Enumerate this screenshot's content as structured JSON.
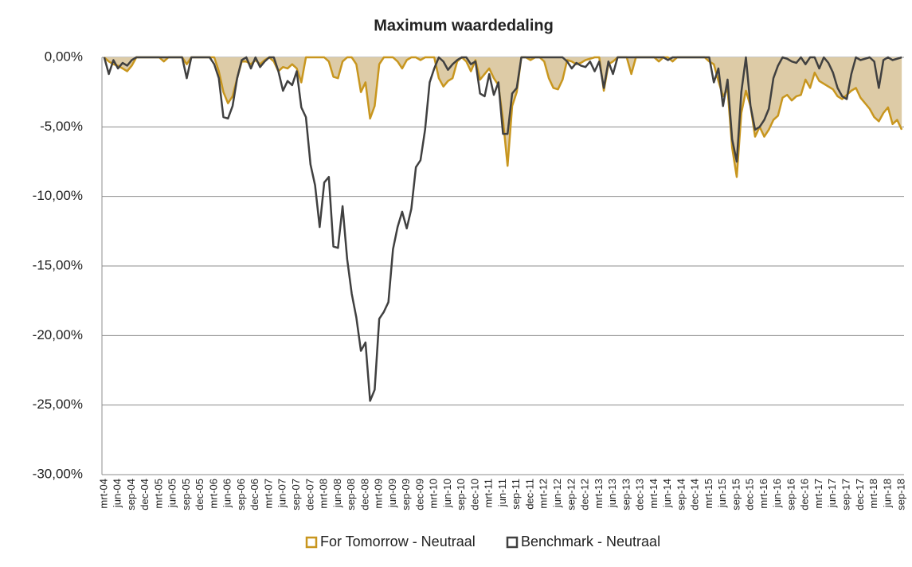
{
  "chart_data": {
    "type": "area-line",
    "title": "Maximum waardedaling",
    "categories": [
      "mrt-04",
      null,
      null,
      "jun-04",
      null,
      null,
      "sep-04",
      null,
      null,
      "dec-04",
      null,
      null,
      "mrt-05",
      null,
      null,
      "jun-05",
      null,
      null,
      "sep-05",
      null,
      null,
      "dec-05",
      null,
      null,
      "mrt-06",
      null,
      null,
      "jun-06",
      null,
      null,
      "sep-06",
      null,
      null,
      "dec-06",
      null,
      null,
      "mrt-07",
      null,
      null,
      "jun-07",
      null,
      null,
      "sep-07",
      null,
      null,
      "dec-07",
      null,
      null,
      "mrt-08",
      null,
      null,
      "jun-08",
      null,
      null,
      "sep-08",
      null,
      null,
      "dec-08",
      null,
      null,
      "mrt-09",
      null,
      null,
      "jun-09",
      null,
      null,
      "sep-09",
      null,
      null,
      "dec-09",
      null,
      null,
      "mrt-10",
      null,
      null,
      "jun-10",
      null,
      null,
      "sep-10",
      null,
      null,
      "dec-10",
      null,
      null,
      "mrt-11",
      null,
      null,
      "jun-11",
      null,
      null,
      "sep-11",
      null,
      null,
      "dec-11",
      null,
      null,
      "mrt-12",
      null,
      null,
      "jun-12",
      null,
      null,
      "sep-12",
      null,
      null,
      "dec-12",
      null,
      null,
      "mrt-13",
      null,
      null,
      "jun-13",
      null,
      null,
      "sep-13",
      null,
      null,
      "dec-13",
      null,
      null,
      "mrt-14",
      null,
      null,
      "jun-14",
      null,
      null,
      "sep-14",
      null,
      null,
      "dec-14",
      null,
      null,
      "mrt-15",
      null,
      null,
      "jun-15",
      null,
      null,
      "sep-15",
      null,
      null,
      "dec-15",
      null,
      null,
      "mrt-16",
      null,
      null,
      "jun-16",
      null,
      null,
      "sep-16",
      null,
      null,
      "dec-16",
      null,
      null,
      "mrt-17",
      null,
      null,
      "jun-17",
      null,
      null,
      "sep-17",
      null,
      null,
      "dec-17",
      null,
      null,
      "mrt-18",
      null,
      null,
      "jun-18",
      null,
      null,
      "sep-18"
    ],
    "series": [
      {
        "name": "For Tomorrow - Neutraal",
        "color": "#c8961e",
        "fill": "#ddcba6",
        "area": true,
        "values": [
          0,
          -0.3,
          -0.5,
          -0.6,
          -0.8,
          -1.0,
          -0.6,
          0,
          0,
          0,
          0,
          0,
          0,
          -0.3,
          0,
          0,
          0,
          0,
          -0.5,
          0,
          0,
          0,
          0,
          0,
          0,
          -1.0,
          -2.5,
          -3.3,
          -2.8,
          -1.5,
          -0.3,
          -0.3,
          -0.5,
          -0.2,
          -0.5,
          -0.2,
          0,
          -0.3,
          -1.0,
          -0.7,
          -0.8,
          -0.5,
          -0.8,
          -1.8,
          0,
          0,
          0,
          0,
          0,
          -0.3,
          -1.4,
          -1.5,
          -0.3,
          0,
          0,
          -0.5,
          -2.5,
          -1.8,
          -4.4,
          -3.5,
          -0.5,
          0,
          0,
          0,
          -0.3,
          -0.8,
          -0.2,
          0,
          0,
          -0.2,
          0,
          0,
          0,
          -1.5,
          -2.1,
          -1.7,
          -1.5,
          -0.3,
          0,
          -0.3,
          -1.0,
          -0.2,
          -1.6,
          -1.2,
          -0.8,
          -1.5,
          -2.0,
          -4.5,
          -7.8,
          -3.5,
          -2.5,
          0,
          0,
          -0.2,
          0,
          0,
          -0.3,
          -1.5,
          -2.2,
          -2.3,
          -1.6,
          -0.2,
          -0.3,
          -0.5,
          -0.4,
          -0.2,
          -0.1,
          0,
          0,
          -2.4,
          -0.5,
          -0.3,
          0,
          0,
          0,
          -1.2,
          0,
          0,
          0,
          0,
          0,
          -0.3,
          0,
          0,
          -0.3,
          0,
          0,
          0,
          0,
          0,
          0,
          0,
          -0.3,
          -0.5,
          -1.7,
          -2.8,
          -2.3,
          -6.5,
          -8.6,
          -4.0,
          -2.4,
          -3.5,
          -5.7,
          -5.0,
          -5.7,
          -5.2,
          -4.5,
          -4.2,
          -2.9,
          -2.7,
          -3.1,
          -2.8,
          -2.7,
          -1.6,
          -2.2,
          -1.1,
          -1.7,
          -1.9,
          -2.1,
          -2.3,
          -2.8,
          -3.0,
          -2.7,
          -2.4,
          -2.2,
          -2.9,
          -3.3,
          -3.7,
          -4.3,
          -4.6,
          -4.0,
          -3.6,
          -4.8,
          -4.5,
          -5.2
        ]
      },
      {
        "name": "Benchmark - Neutraal",
        "color": "#404040",
        "area": false,
        "values": [
          0,
          -1.2,
          -0.2,
          -0.8,
          -0.4,
          -0.6,
          -0.2,
          0,
          0,
          0,
          0,
          0,
          0,
          0,
          0,
          0,
          0,
          0,
          -1.5,
          0,
          0,
          0,
          0,
          0,
          -0.5,
          -1.5,
          -4.3,
          -4.4,
          -3.5,
          -1.5,
          -0.2,
          0,
          -0.8,
          0,
          -0.7,
          -0.3,
          0,
          0,
          -1.0,
          -2.4,
          -1.7,
          -2.0,
          -1.0,
          -3.6,
          -4.3,
          -7.7,
          -9.2,
          -12.2,
          -9.0,
          -8.6,
          -13.6,
          -13.7,
          -10.7,
          -14.5,
          -17.0,
          -18.7,
          -21.1,
          -20.5,
          -24.7,
          -23.9,
          -18.8,
          -18.3,
          -17.6,
          -13.8,
          -12.2,
          -11.1,
          -12.3,
          -10.9,
          -7.9,
          -7.4,
          -5.2,
          -1.8,
          -0.8,
          0,
          -0.3,
          -0.9,
          -0.5,
          -0.2,
          0,
          0,
          -0.5,
          -0.3,
          -2.6,
          -2.8,
          -1.2,
          -2.7,
          -1.8,
          -5.5,
          -5.5,
          -2.6,
          -2.2,
          0,
          0,
          0,
          0,
          0,
          0,
          0,
          0,
          0,
          0,
          -0.3,
          -0.8,
          -0.4,
          -0.6,
          -0.7,
          -0.3,
          -1.0,
          -0.3,
          -2.2,
          -0.3,
          -1.2,
          0,
          0,
          0,
          0,
          0,
          0,
          0,
          0,
          0,
          0,
          0,
          -0.2,
          0,
          0,
          0,
          0,
          0,
          0,
          0,
          0,
          0,
          -1.8,
          -0.8,
          -3.5,
          -1.6,
          -5.9,
          -7.5,
          -2.5,
          0,
          -3.5,
          -5.2,
          -5.0,
          -4.5,
          -3.7,
          -1.5,
          -0.6,
          0,
          -0.1,
          -0.3,
          -0.4,
          0,
          -0.5,
          0,
          0,
          -0.8,
          0,
          -0.4,
          -1.1,
          -2.2,
          -2.8,
          -3.0,
          -1.2,
          0,
          -0.2,
          -0.1,
          0,
          -0.3,
          -2.2,
          -0.2,
          0,
          -0.2,
          -0.1,
          0
        ]
      }
    ],
    "ylim": [
      -30,
      0
    ],
    "yticks": [
      {
        "value": 0,
        "label": "0,00%"
      },
      {
        "value": -5,
        "label": "-5,00%"
      },
      {
        "value": -10,
        "label": "-10,00%"
      },
      {
        "value": -15,
        "label": "-15,00%"
      },
      {
        "value": -20,
        "label": "-20,00%"
      },
      {
        "value": -25,
        "label": "-25,00%"
      },
      {
        "value": -30,
        "label": "-30,00%"
      }
    ],
    "grid": true,
    "legend": "bottom"
  }
}
